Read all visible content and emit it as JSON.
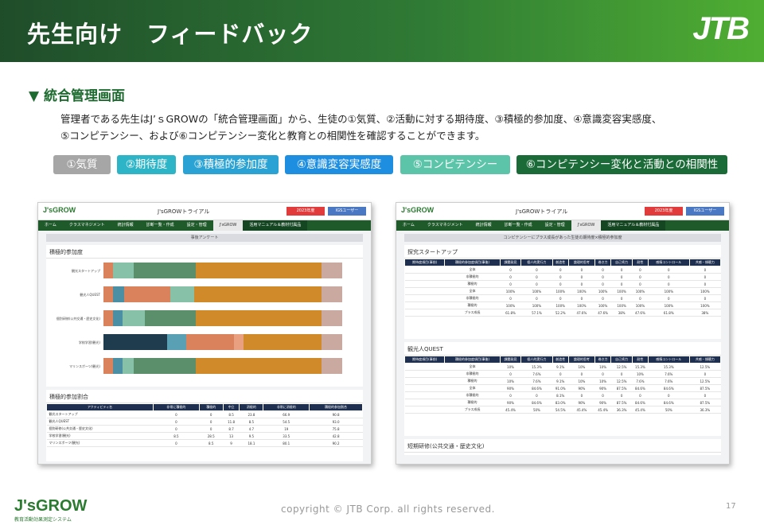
{
  "header": {
    "title": "先生向け　フィードバック",
    "logo_text": "JTB"
  },
  "section": {
    "title": "▼ 統合管理画面"
  },
  "description": {
    "line1": "管理者である先生はJ’ｓGROWの「統合管理画面」から、生徒の①気質、②活動に対する期待度、③積極的参加度、④意識変容実感度、",
    "line2": "⑤コンピテンシー、および⑥コンピテンシー変化と教育との相関性を確認することができます。"
  },
  "categories": [
    {
      "label": "①気質",
      "color": "#a6a6a6"
    },
    {
      "label": "②期待度",
      "color": "#2db5c7"
    },
    {
      "label": "③積極的参加度",
      "color": "#2aa3d4"
    },
    {
      "label": "④意識変容実感度",
      "color": "#1e8fe0"
    },
    {
      "label": "⑤コンピテンシー",
      "color": "#5cc4a8"
    },
    {
      "label": "⑥コンピテンシー変化と活動との相関性",
      "color": "#1b6b38"
    }
  ],
  "left_screen": {
    "logo": "J'sGROW",
    "app_title": "J'sGROWトライアル",
    "year_select": "2023年度",
    "user_select": "IGSユーザー",
    "nav": [
      "ホーム",
      "クラスマネジメント",
      "統計情報",
      "診断一覧・作成",
      "設定・管理",
      "J'sGROW",
      "活用マニュアル＆教材付属品"
    ],
    "subheader": "事後アンケート",
    "panel1_title": "積極的参加度",
    "bar_labels": [
      "観光スタートアップ",
      "観光人QUEST",
      "個別研修(公共交通・歴史文化)",
      "学校学習(観光)",
      "マリンスポーツ(観光)"
    ],
    "panel2_title": "積極的参加割合",
    "table_headers": [
      "アクティビティ名",
      "非常に積極的",
      "積極的",
      "中立",
      "消極的",
      "非常に消極的",
      "積極的参加割合"
    ],
    "table_rows": [
      [
        "観光スタートアップ",
        "0",
        "0",
        "8.5",
        "23.8",
        "66.9",
        "90.8"
      ],
      [
        "観光人QUEST",
        "0",
        "0",
        "11.8",
        "8.5",
        "54.5",
        "93.0"
      ],
      [
        "個別研修(公共交通・歴史文化)",
        "0",
        "0",
        "8.7",
        "4.7",
        "19",
        "75.8"
      ],
      [
        "学校学習(観光)",
        "8.5",
        "28.5",
        "13",
        "9.5",
        "33.5",
        "42.8"
      ],
      [
        "マリンスポーツ(観光)",
        "0",
        "8.5",
        "9",
        "18.1",
        "80.1",
        "90.2"
      ]
    ]
  },
  "right_screen": {
    "logo": "J'sGROW",
    "app_title": "J'sGROWトライアル",
    "year_select": "2023年度",
    "user_select": "IGSユーザー",
    "nav": [
      "ホーム",
      "クラスマネジメント",
      "統計情報",
      "診断一覧・作成",
      "設定・管理",
      "J'sGROW",
      "活用マニュアル＆教材付属品"
    ],
    "subheader": "コンピテンシーにプラス成長があった生徒の期待度×積極的参加度",
    "panel1_title": "探究スタートアップ",
    "panel2_title": "観光人QUEST",
    "panel3_title": "短期研修(公共交通・歴史文化)",
    "table_headers": [
      "期待度項目(事前)",
      "積極的参加度項目(事後)",
      "課題発見",
      "個人的実行力",
      "創造性",
      "論理的思考",
      "巻き力",
      "自己肯力",
      "耐性",
      "感情コントロール",
      "共感・傾聴力"
    ],
    "row_labels": [
      "全体",
      "非積極的",
      "積極的",
      "全体",
      "非積極的",
      "積極的",
      "プラス成長"
    ]
  },
  "footer": {
    "logo_text": "J'sGROW",
    "logo_sub": "教育活動効果測定システム",
    "copyright": "copyright © JTB Corp. all rights reserved.",
    "page": "17"
  }
}
